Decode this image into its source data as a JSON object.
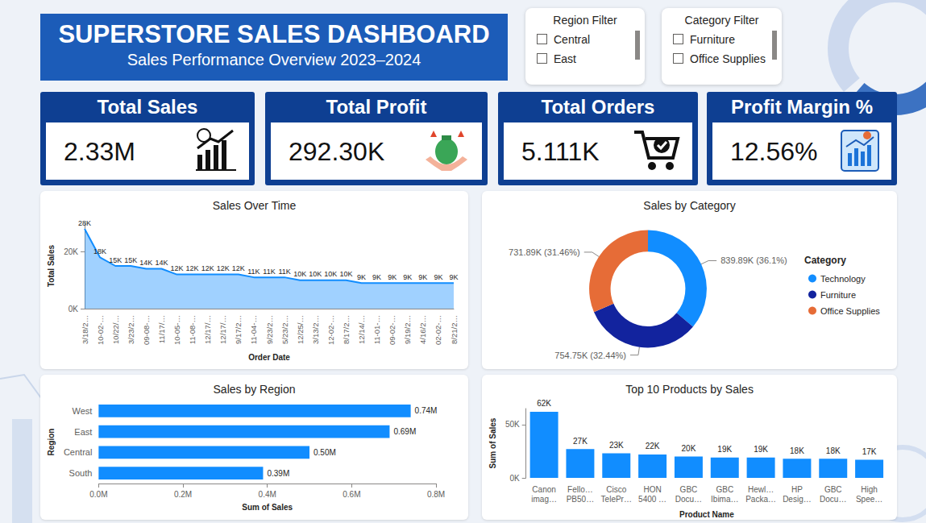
{
  "header": {
    "title": "SUPERSTORE SALES DASHBOARD",
    "subtitle": "Sales Performance Overview 2023–2024"
  },
  "filters": [
    {
      "title": "Region Filter",
      "options": [
        "Central",
        "East"
      ]
    },
    {
      "title": "Category Filter",
      "options": [
        "Furniture",
        "Office Supplies"
      ]
    }
  ],
  "kpis": [
    {
      "title": "Total Sales",
      "value": "2.33M"
    },
    {
      "title": "Total Profit",
      "value": "292.30K"
    },
    {
      "title": "Total Orders",
      "value": "5.111K"
    },
    {
      "title": "Profit Margin %",
      "value": "12.56%"
    }
  ],
  "chart_data": [
    {
      "type": "area",
      "title": "Sales Over Time",
      "x_label": "Order Date",
      "y_label": "Total Sales",
      "categories": [
        "3/18/2…",
        "10-02-…",
        "10/22/…",
        "3/23/2…",
        "09-08-…",
        "11/17/…",
        "10-05-…",
        "11-08-…",
        "12/17/…",
        "12/17/…",
        "9/17/2…",
        "11-04-…",
        "9/23/2…",
        "5/23/2…",
        "12/25/…",
        "3/13/2…",
        "12-02-…",
        "8/17/2…",
        "12/14/…",
        "11-01-…",
        "09-02-…",
        "9/19/2…",
        "4/16/2…",
        "02-02-…",
        "8/21/2…"
      ],
      "values": [
        28000,
        18000,
        15000,
        15000,
        14000,
        14000,
        12000,
        12000,
        12000,
        12000,
        12000,
        11000,
        11000,
        11000,
        10000,
        10000,
        10000,
        10000,
        9000,
        9000,
        9000,
        9000,
        9000,
        9000,
        9000
      ],
      "value_labels": [
        "28K",
        "18K",
        "15K",
        "15K",
        "14K",
        "14K",
        "12K",
        "12K",
        "12K",
        "12K",
        "12K",
        "11K",
        "11K",
        "11K",
        "10K",
        "10K",
        "10K",
        "10K",
        "9K",
        "9K",
        "9K",
        "9K",
        "9K",
        "9K",
        "9K"
      ],
      "color": "#118DFF",
      "ylim": [
        0,
        30000
      ],
      "yticks": [
        {
          "value": 0,
          "label": "0K"
        },
        {
          "value": 20000,
          "label": "20K"
        }
      ],
      "grid": false,
      "data_labels": true
    },
    {
      "type": "donut",
      "title": "Sales by Category",
      "categories": [
        "Technology",
        "Furniture",
        "Office Supplies"
      ],
      "values": [
        839890,
        754750,
        731890
      ],
      "value_labels": [
        "839.89K (36.1%)",
        "754.75K (32.44%)",
        "731.89K (31.46%)"
      ],
      "colors": [
        "#118DFF",
        "#12239E",
        "#E66C37"
      ],
      "legend": "right",
      "legend_title": "Category",
      "data_labels": true
    },
    {
      "type": "bar",
      "orientation": "horizontal",
      "title": "Sales by Region",
      "x_label": "Sum of Sales",
      "y_label": "Region",
      "categories": [
        "West",
        "East",
        "Central",
        "South"
      ],
      "values": [
        740000,
        690000,
        500000,
        390000
      ],
      "value_labels": [
        "0.74M",
        "0.69M",
        "0.50M",
        "0.39M"
      ],
      "color": "#118DFF",
      "xlim": [
        0,
        800000
      ],
      "xticks": [
        {
          "value": 0,
          "label": "0.0M"
        },
        {
          "value": 200000,
          "label": "0.2M"
        },
        {
          "value": 400000,
          "label": "0.4M"
        },
        {
          "value": 600000,
          "label": "0.6M"
        },
        {
          "value": 800000,
          "label": "0.8M"
        }
      ],
      "grid": false,
      "data_labels": true
    },
    {
      "type": "bar",
      "title": "Top 10 Products by Sales",
      "x_label": "Product Name",
      "y_label": "Sum of Sales",
      "categories": [
        "Canon imag…",
        "Fello… PB50…",
        "Cisco TelePr…",
        "HON 5400 …",
        "GBC Docu…",
        "GBC Ibima…",
        "Hewl… Packa…",
        "HP Desig…",
        "GBC Docu…",
        "High Spee…"
      ],
      "values": [
        62000,
        27000,
        23000,
        22000,
        20000,
        19000,
        19000,
        18000,
        18000,
        17000
      ],
      "value_labels": [
        "62K",
        "27K",
        "23K",
        "22K",
        "20K",
        "19K",
        "19K",
        "18K",
        "18K",
        "17K"
      ],
      "color": "#118DFF",
      "ylim": [
        0,
        65000
      ],
      "yticks": [
        {
          "value": 0,
          "label": "0K"
        },
        {
          "value": 50000,
          "label": "50K"
        }
      ],
      "grid": false,
      "data_labels": true
    }
  ]
}
